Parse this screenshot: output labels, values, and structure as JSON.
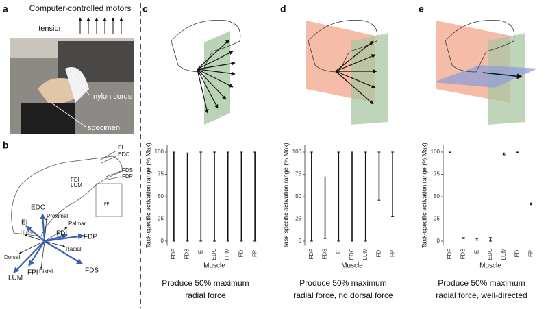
{
  "panels": {
    "a": {
      "label": "a",
      "title": "Computer-controlled motors",
      "tension": "tension",
      "nylon": "nylon cords",
      "specimen": "specimen"
    },
    "b": {
      "label": "b",
      "labels": [
        "EI",
        "EDC",
        "FDS",
        "FDP",
        "FDI",
        "LUM",
        "EDC",
        "Proximal",
        "EI",
        "Ulnar",
        "Palmar",
        "FDI",
        "FDP",
        "Radial",
        "Dorsal",
        "Distal",
        "LUM",
        "FPI",
        "FDS",
        "FPI"
      ]
    }
  },
  "chart_data": [
    {
      "type": "range",
      "panel_label": "c",
      "ylabel": "Task-specific activation range (% Max)",
      "xlabel": "Muscle",
      "caption": [
        "Produce 50% maximum",
        "radial force"
      ],
      "categories": [
        "FDP",
        "FDS",
        "EI",
        "EDC",
        "LUM",
        "FDI",
        "FPI"
      ],
      "low": [
        0,
        0,
        0,
        0,
        0,
        0,
        0
      ],
      "high": [
        100,
        99,
        100,
        100,
        100,
        100,
        100
      ],
      "ylim": [
        -5,
        108
      ],
      "yticks": [
        0,
        25,
        50,
        75,
        100
      ]
    },
    {
      "type": "range",
      "panel_label": "d",
      "ylabel": "Task-specific activation range (% Max)",
      "xlabel": "Muscle",
      "caption": [
        "Produce 50% maximum",
        "radial force, no dorsal force"
      ],
      "categories": [
        "FDP",
        "FDS",
        "EI",
        "EDC",
        "LUM",
        "FDI",
        "FPI"
      ],
      "low": [
        0,
        3,
        0,
        0,
        0,
        46,
        28
      ],
      "high": [
        100,
        72,
        100,
        100,
        100,
        100,
        100
      ],
      "ylim": [
        -5,
        108
      ],
      "yticks": [
        0,
        25,
        50,
        75,
        100
      ]
    },
    {
      "type": "range",
      "panel_label": "e",
      "ylabel": "Task-specific activation range (% Max)",
      "xlabel": "Muscle",
      "caption": [
        "Produce 50% maximum",
        "radial force, well-directed"
      ],
      "categories": [
        "FDP",
        "FDS",
        "EI",
        "EDC",
        "LUM",
        "FDI",
        "FPI"
      ],
      "low": [
        99,
        3,
        1,
        0,
        97,
        99,
        41
      ],
      "high": [
        100,
        4,
        3,
        4,
        99,
        100,
        43
      ],
      "ylim": [
        -5,
        108
      ],
      "yticks": [
        0,
        25,
        50,
        75,
        100
      ]
    }
  ]
}
